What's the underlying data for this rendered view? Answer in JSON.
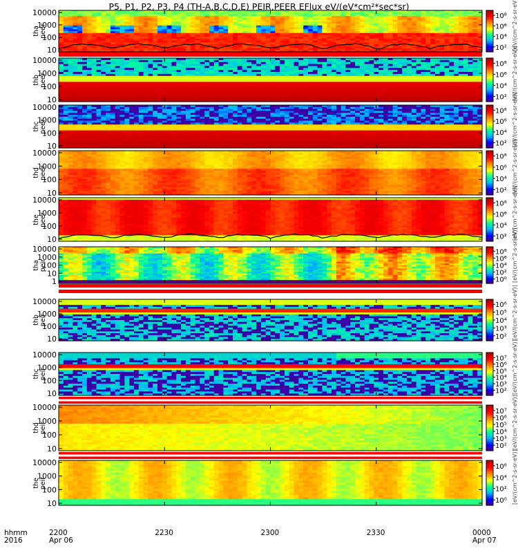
{
  "title": "P5, P1, P2, P3, P4 (TH-A,B,C,D,E) PEIR,PEER EFlux eV/(eV*cm²*sec*sr)",
  "x_axis": {
    "row1_label": "hhmm",
    "row2_label": "2016",
    "ticks": [
      {
        "t": 0,
        "label": "2200",
        "date": "Apr 06"
      },
      {
        "t": 30,
        "label": "2230",
        "date": ""
      },
      {
        "t": 60,
        "label": "2300",
        "date": ""
      },
      {
        "t": 90,
        "label": "2330",
        "date": ""
      },
      {
        "t": 120,
        "label": "0000",
        "date": "Apr 07"
      }
    ]
  },
  "colors": {
    "cmap": [
      "#5a0078",
      "#0000ff",
      "#00b4ff",
      "#00ff96",
      "#ffff00",
      "#ff8c00",
      "#ff0000",
      "#b40000"
    ]
  },
  "chart_data": [
    {
      "type": "heatmap",
      "probe": "tha",
      "instrument": "peer",
      "label": "tha\npeer",
      "y_ticks": [
        "10000",
        "1000",
        "100",
        "10"
      ],
      "y_log": true,
      "cb_ticks": [
        "10⁸",
        "10⁶",
        "10⁴",
        "10²"
      ],
      "cb_unit": "[eV/(cm^2-s-sr-eV)]",
      "white_gap": false,
      "line": true
    },
    {
      "type": "heatmap",
      "probe": "thb",
      "instrument": "peer",
      "label": "thb\npeer",
      "y_ticks": [
        "10000",
        "1000",
        "100",
        "10"
      ],
      "y_log": true,
      "cb_ticks": [
        "10⁸",
        "10⁶",
        "10⁴",
        "10²"
      ],
      "cb_unit": "[eV/(cm^2-s-sr-eV)]",
      "white_gap": false,
      "line": false
    },
    {
      "type": "heatmap",
      "probe": "thc",
      "instrument": "peer",
      "label": "thc\npeer",
      "y_ticks": [
        "10000",
        "1000",
        "100",
        "10"
      ],
      "y_log": true,
      "cb_ticks": [
        "10⁸",
        "10⁶",
        "10⁴",
        "10²"
      ],
      "cb_unit": "[eV/(cm^2-s-sr-eV)]",
      "white_gap": false,
      "line": false
    },
    {
      "type": "heatmap",
      "probe": "thd",
      "instrument": "peer",
      "label": "thd\npeer",
      "y_ticks": [
        "10000",
        "1000",
        "100",
        "10"
      ],
      "y_log": true,
      "cb_ticks": [
        "10⁸",
        "10⁶",
        "10⁴",
        "10²"
      ],
      "cb_unit": "[eV/(cm^2-s-sr-eV)]",
      "white_gap": false,
      "line": false
    },
    {
      "type": "heatmap",
      "probe": "the",
      "instrument": "peer",
      "label": "the\npeer",
      "y_ticks": [
        "10000",
        "1000",
        "100",
        "10"
      ],
      "y_log": true,
      "cb_ticks": [
        "10⁸",
        "10⁶",
        "10⁴",
        "10²"
      ],
      "cb_unit": "[eV/(cm^2-s-sr-eV)]",
      "white_gap": false,
      "line": true
    },
    {
      "type": "heatmap",
      "probe": "tha",
      "instrument": "peir",
      "label": "tha\npeir",
      "y_ticks": [
        "10000",
        "1000",
        "100",
        "10",
        "1"
      ],
      "y_log": true,
      "cb_ticks": [
        "10⁸",
        "10⁶",
        "10⁴",
        "10²",
        "10⁰"
      ],
      "cb_unit": "[eV/(cm^2-s-sr-eV)]",
      "white_gap": true,
      "line": false
    },
    {
      "type": "heatmap",
      "probe": "thb",
      "instrument": "peir",
      "label": "thb\npeir",
      "y_ticks": [
        "10000",
        "1000",
        "100",
        "10"
      ],
      "y_log": true,
      "cb_ticks": [
        "10⁶",
        "10⁵",
        "10⁴",
        "10³",
        "10²"
      ],
      "cb_unit": "[eV/(cm^2-s-sr-eV)]",
      "white_gap": false,
      "line": false
    },
    {
      "type": "heatmap",
      "probe": "thc",
      "instrument": "peir",
      "label": "thc\npeir",
      "y_ticks": [
        "10000",
        "1000",
        "100",
        "10"
      ],
      "y_log": true,
      "cb_ticks": [
        "10⁷",
        "10⁶",
        "10⁵",
        "10⁴",
        "10³",
        "10²"
      ],
      "cb_unit": "[eV/(cm^2-s-sr-eV)]",
      "white_gap": true,
      "line": false
    },
    {
      "type": "heatmap",
      "probe": "thd",
      "instrument": "peir",
      "label": "thd\npeir",
      "y_ticks": [
        "10000",
        "1000",
        "100",
        "10"
      ],
      "y_log": true,
      "cb_ticks": [
        "10⁷",
        "10⁶",
        "10⁵",
        "10⁴",
        "10³",
        "10²"
      ],
      "cb_unit": "[eV/(cm^2-s-sr-eV)]",
      "white_gap": true,
      "line": false
    },
    {
      "type": "heatmap",
      "probe": "the",
      "instrument": "peir",
      "label": "the\npeir",
      "y_ticks": [
        "10000",
        "1000",
        "100",
        "10"
      ],
      "y_log": true,
      "cb_ticks": [
        "10⁶",
        "10⁴",
        "10²",
        "10⁰"
      ],
      "cb_unit": "[eV/(cm^2-s-sr-eV)]",
      "white_gap": false,
      "line": false
    }
  ]
}
